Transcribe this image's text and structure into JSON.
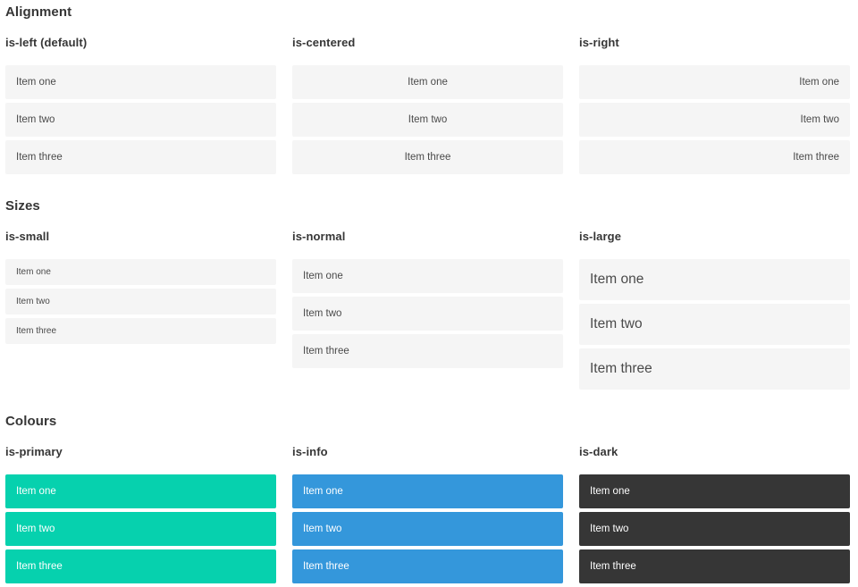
{
  "colors": {
    "primary": "#06d1ae",
    "info": "#3497db",
    "dark": "#363636",
    "item_background": "#f5f5f5",
    "item_text": "#4a4a4a",
    "heading_text": "#363636",
    "colored_item_text": "#ffffff"
  },
  "sections": [
    {
      "title": "Alignment",
      "columns": [
        {
          "heading": "is-left (default)",
          "style": "align-left",
          "items": [
            "Item one",
            "Item two",
            "Item three"
          ]
        },
        {
          "heading": "is-centered",
          "style": "align-center",
          "items": [
            "Item one",
            "Item two",
            "Item three"
          ]
        },
        {
          "heading": "is-right",
          "style": "align-right",
          "items": [
            "Item one",
            "Item two",
            "Item three"
          ]
        }
      ]
    },
    {
      "title": "Sizes",
      "columns": [
        {
          "heading": "is-small",
          "style": "size-small",
          "items": [
            "Item one",
            "Item two",
            "Item three"
          ]
        },
        {
          "heading": "is-normal",
          "style": "size-normal",
          "items": [
            "Item one",
            "Item two",
            "Item three"
          ]
        },
        {
          "heading": "is-large",
          "style": "size-large",
          "items": [
            "Item one",
            "Item two",
            "Item three"
          ]
        }
      ]
    },
    {
      "title": "Colours",
      "columns": [
        {
          "heading": "is-primary",
          "style": "color-primary",
          "items": [
            "Item one",
            "Item two",
            "Item three"
          ]
        },
        {
          "heading": "is-info",
          "style": "color-info",
          "items": [
            "Item one",
            "Item two",
            "Item three"
          ]
        },
        {
          "heading": "is-dark",
          "style": "color-dark",
          "items": [
            "Item one",
            "Item two",
            "Item three"
          ]
        }
      ]
    }
  ]
}
